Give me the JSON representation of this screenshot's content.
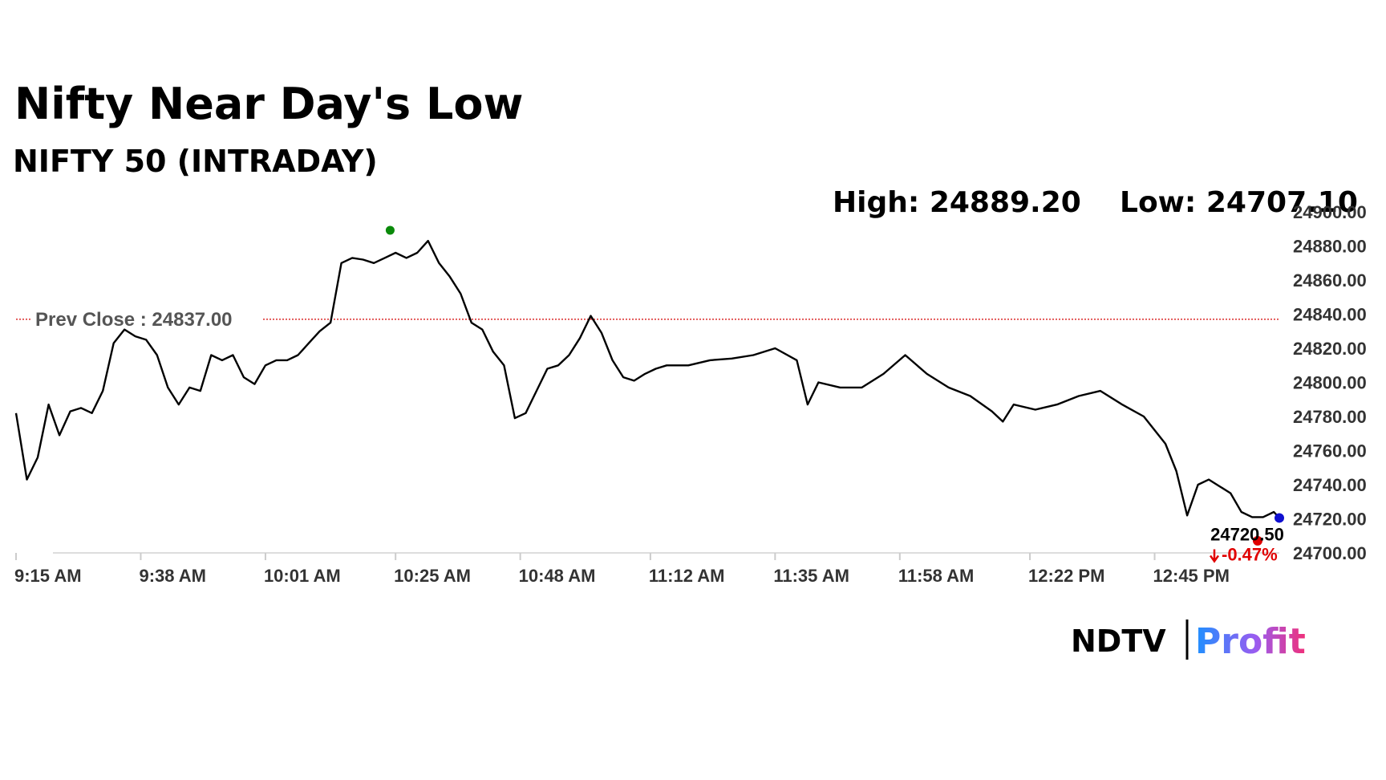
{
  "chart_data": {
    "type": "line",
    "title": "Nifty Near Day's Low",
    "subtitle": "NIFTY 50 (INTRADAY)",
    "color": "#000000",
    "x": [
      "9:15 AM",
      "9:17 AM",
      "9:19 AM",
      "9:21 AM",
      "9:23 AM",
      "9:25 AM",
      "9:27 AM",
      "9:29 AM",
      "9:31 AM",
      "9:33 AM",
      "9:35 AM",
      "9:37 AM",
      "9:39 AM",
      "9:41 AM",
      "9:43 AM",
      "9:45 AM",
      "9:47 AM",
      "9:49 AM",
      "9:51 AM",
      "9:53 AM",
      "9:55 AM",
      "9:57 AM",
      "9:59 AM",
      "10:01 AM",
      "10:03 AM",
      "10:05 AM",
      "10:07 AM",
      "10:09 AM",
      "10:11 AM",
      "10:13 AM",
      "10:15 AM",
      "10:17 AM",
      "10:19 AM",
      "10:21 AM",
      "10:23 AM",
      "10:25 AM",
      "10:27 AM",
      "10:29 AM",
      "10:31 AM",
      "10:33 AM",
      "10:35 AM",
      "10:37 AM",
      "10:39 AM",
      "10:41 AM",
      "10:43 AM",
      "10:45 AM",
      "10:47 AM",
      "10:49 AM",
      "10:51 AM",
      "10:53 AM",
      "10:55 AM",
      "10:57 AM",
      "10:59 AM",
      "11:01 AM",
      "11:03 AM",
      "11:05 AM",
      "11:07 AM",
      "11:09 AM",
      "11:11 AM",
      "11:13 AM",
      "11:15 AM",
      "11:19 AM",
      "11:23 AM",
      "11:27 AM",
      "11:31 AM",
      "11:35 AM",
      "11:39 AM",
      "11:41 AM",
      "11:43 AM",
      "11:47 AM",
      "11:51 AM",
      "11:55 AM",
      "11:59 AM",
      "12:03 PM",
      "12:07 PM",
      "12:11 PM",
      "12:15 PM",
      "12:17 PM",
      "12:19 PM",
      "12:23 PM",
      "12:27 PM",
      "12:31 PM",
      "12:35 PM",
      "12:39 PM",
      "12:43 PM",
      "12:47 PM",
      "12:49 PM",
      "12:51 PM",
      "12:53 PM",
      "12:55 PM",
      "12:57 PM",
      "12:59 PM",
      "1:01 PM",
      "1:03 PM",
      "1:05 PM",
      "1:07 PM",
      "1:08 PM"
    ],
    "values": [
      24782,
      24743,
      24756,
      24787,
      24769,
      24783,
      24785,
      24782,
      24795,
      24823,
      24831,
      24827,
      24825,
      24816,
      24797,
      24787,
      24797,
      24795,
      24816,
      24813,
      24816,
      24803,
      24799,
      24810,
      24813,
      24813,
      24816,
      24823,
      24830,
      24835,
      24870,
      24873,
      24872,
      24870,
      24873,
      24876,
      24873,
      24876,
      24883,
      24870,
      24862,
      24852,
      24835,
      24831,
      24818,
      24810,
      24779,
      24782,
      24795,
      24808,
      24810,
      24816,
      24826,
      24839,
      24829,
      24813,
      24803,
      24801,
      24805,
      24808,
      24810,
      24810,
      24813,
      24814,
      24816,
      24820,
      24813,
      24787,
      24800,
      24797,
      24797,
      24805,
      24816,
      24805,
      24797,
      24792,
      24783,
      24777,
      24787,
      24784,
      24787,
      24792,
      24795,
      24787,
      24780,
      24764,
      24748,
      24722,
      24740,
      24743,
      24739,
      24735,
      24724,
      24721,
      24721,
      24724,
      24720.5
    ],
    "xlim": [
      "9:15 AM",
      "1:08 PM"
    ],
    "xticks": [
      "9:15 AM",
      "9:38 AM",
      "10:01 AM",
      "10:25 AM",
      "10:48 AM",
      "11:12 AM",
      "11:35 AM",
      "11:58 AM",
      "12:22 PM",
      "12:45 PM"
    ],
    "ylim": [
      24700,
      24900
    ],
    "yticks": [
      {
        "value": 24700,
        "label": "24700.00"
      },
      {
        "value": 24720,
        "label": "24720.00"
      },
      {
        "value": 24740,
        "label": "24740.00"
      },
      {
        "value": 24760,
        "label": "24760.00"
      },
      {
        "value": 24780,
        "label": "24780.00"
      },
      {
        "value": 24800,
        "label": "24800.00"
      },
      {
        "value": 24820,
        "label": "24820.00"
      },
      {
        "value": 24840,
        "label": "24840.00"
      },
      {
        "value": 24860,
        "label": "24860.00"
      },
      {
        "value": 24880,
        "label": "24880.00"
      },
      {
        "value": 24900,
        "label": "24900.00"
      }
    ],
    "high": {
      "label": "High:",
      "value": 24889.2,
      "value_label": "24889.20",
      "x": "10:24 AM",
      "color": "#0a8a0a"
    },
    "low": {
      "label": "Low:",
      "value": 24707.1,
      "value_label": "24707.10",
      "x": "1:04 PM",
      "color": "#e00000"
    },
    "prev_close": {
      "label": "Prev Close :",
      "value": 24837,
      "value_label": "24837.00",
      "color": "#d40000"
    },
    "last": {
      "value": 24720.5,
      "value_label": "24720.50",
      "change": -0.47,
      "change_label": "-0.47%",
      "color": "#1010d0",
      "change_color": "#e00000"
    },
    "logo": {
      "brand": "NDTV",
      "product": "Profit"
    }
  }
}
